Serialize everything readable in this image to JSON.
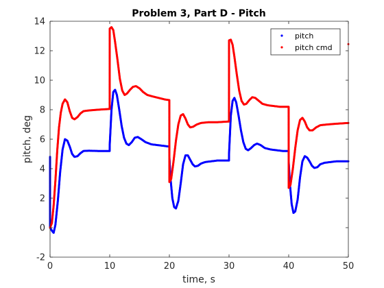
{
  "chart_data": {
    "type": "scatter",
    "title": "Problem 3, Part D - Pitch",
    "xlabel": "time, s",
    "ylabel": "pitch, deg",
    "xlim": [
      0,
      50
    ],
    "ylim": [
      -2,
      14
    ],
    "xticks": [
      "0",
      "10",
      "20",
      "30",
      "40",
      "50"
    ],
    "yticks": [
      "-2",
      "0",
      "2",
      "4",
      "6",
      "8",
      "10",
      "12",
      "14"
    ],
    "grid": false,
    "legend_position": "top-right",
    "series": [
      {
        "name": "pitch",
        "color": "#0000ff",
        "points": [
          [
            0.0,
            4.8
          ],
          [
            0.0,
            0.0
          ],
          [
            0.3,
            -0.2
          ],
          [
            0.6,
            -0.35
          ],
          [
            0.9,
            0.2
          ],
          [
            1.3,
            1.8
          ],
          [
            1.7,
            3.8
          ],
          [
            2.1,
            5.3
          ],
          [
            2.5,
            6.0
          ],
          [
            2.9,
            5.9
          ],
          [
            3.3,
            5.5
          ],
          [
            3.7,
            5.0
          ],
          [
            4.1,
            4.8
          ],
          [
            4.6,
            4.85
          ],
          [
            5.1,
            5.05
          ],
          [
            5.6,
            5.2
          ],
          [
            6.5,
            5.22
          ],
          [
            8,
            5.2
          ],
          [
            9.99,
            5.2
          ],
          [
            10.0,
            5.6
          ],
          [
            10.3,
            8.0
          ],
          [
            10.6,
            9.2
          ],
          [
            10.9,
            9.35
          ],
          [
            11.2,
            9.0
          ],
          [
            11.6,
            8.0
          ],
          [
            12.0,
            6.9
          ],
          [
            12.4,
            6.1
          ],
          [
            12.8,
            5.7
          ],
          [
            13.2,
            5.6
          ],
          [
            13.7,
            5.8
          ],
          [
            14.2,
            6.1
          ],
          [
            14.7,
            6.15
          ],
          [
            15.3,
            6.0
          ],
          [
            16,
            5.8
          ],
          [
            17,
            5.65
          ],
          [
            18,
            5.6
          ],
          [
            19.0,
            5.55
          ],
          [
            19.99,
            5.5
          ],
          [
            20.0,
            4.8
          ],
          [
            20.2,
            3.3
          ],
          [
            20.5,
            2.0
          ],
          [
            20.8,
            1.4
          ],
          [
            21.1,
            1.3
          ],
          [
            21.5,
            1.8
          ],
          [
            21.9,
            3.0
          ],
          [
            22.3,
            4.3
          ],
          [
            22.7,
            4.9
          ],
          [
            23.1,
            4.9
          ],
          [
            23.5,
            4.6
          ],
          [
            23.9,
            4.3
          ],
          [
            24.3,
            4.15
          ],
          [
            24.8,
            4.2
          ],
          [
            25.3,
            4.35
          ],
          [
            26,
            4.45
          ],
          [
            27,
            4.5
          ],
          [
            28,
            4.55
          ],
          [
            29,
            4.55
          ],
          [
            29.99,
            4.55
          ],
          [
            30.0,
            5.0
          ],
          [
            30.3,
            7.6
          ],
          [
            30.6,
            8.6
          ],
          [
            30.9,
            8.8
          ],
          [
            31.2,
            8.5
          ],
          [
            31.6,
            7.6
          ],
          [
            32.0,
            6.6
          ],
          [
            32.4,
            5.8
          ],
          [
            32.8,
            5.35
          ],
          [
            33.2,
            5.25
          ],
          [
            33.7,
            5.4
          ],
          [
            34.2,
            5.6
          ],
          [
            34.7,
            5.7
          ],
          [
            35.3,
            5.6
          ],
          [
            36,
            5.4
          ],
          [
            37,
            5.3
          ],
          [
            38,
            5.25
          ],
          [
            39.0,
            5.2
          ],
          [
            39.99,
            5.2
          ],
          [
            40.0,
            4.5
          ],
          [
            40.2,
            3.0
          ],
          [
            40.5,
            1.6
          ],
          [
            40.8,
            1.0
          ],
          [
            41.1,
            1.1
          ],
          [
            41.5,
            1.9
          ],
          [
            41.9,
            3.4
          ],
          [
            42.3,
            4.5
          ],
          [
            42.7,
            4.85
          ],
          [
            43.1,
            4.75
          ],
          [
            43.5,
            4.5
          ],
          [
            43.9,
            4.2
          ],
          [
            44.3,
            4.05
          ],
          [
            44.8,
            4.1
          ],
          [
            45.3,
            4.3
          ],
          [
            46,
            4.4
          ],
          [
            47,
            4.45
          ],
          [
            48,
            4.5
          ],
          [
            49,
            4.5
          ],
          [
            50,
            4.5
          ]
        ]
      },
      {
        "name": "pitch cmd",
        "color": "#ff0000",
        "points": [
          [
            0.0,
            0.0
          ],
          [
            0.3,
            0.3
          ],
          [
            0.6,
            1.5
          ],
          [
            0.9,
            3.2
          ],
          [
            1.2,
            5.2
          ],
          [
            1.5,
            6.8
          ],
          [
            1.8,
            7.8
          ],
          [
            2.1,
            8.4
          ],
          [
            2.5,
            8.7
          ],
          [
            2.9,
            8.5
          ],
          [
            3.3,
            7.9
          ],
          [
            3.7,
            7.45
          ],
          [
            4.1,
            7.35
          ],
          [
            4.6,
            7.5
          ],
          [
            5.1,
            7.75
          ],
          [
            5.6,
            7.9
          ],
          [
            6.5,
            7.95
          ],
          [
            8,
            8.0
          ],
          [
            9.99,
            8.05
          ],
          [
            10.0,
            13.5
          ],
          [
            10.3,
            13.6
          ],
          [
            10.6,
            13.4
          ],
          [
            10.9,
            12.6
          ],
          [
            11.3,
            11.4
          ],
          [
            11.7,
            10.1
          ],
          [
            12.1,
            9.3
          ],
          [
            12.5,
            9.0
          ],
          [
            12.9,
            9.1
          ],
          [
            13.4,
            9.35
          ],
          [
            13.9,
            9.55
          ],
          [
            14.4,
            9.6
          ],
          [
            15,
            9.45
          ],
          [
            15.6,
            9.2
          ],
          [
            16.3,
            9.0
          ],
          [
            17.2,
            8.9
          ],
          [
            18.2,
            8.8
          ],
          [
            19.2,
            8.7
          ],
          [
            19.99,
            8.65
          ],
          [
            20.0,
            3.1
          ],
          [
            20.3,
            3.3
          ],
          [
            20.7,
            4.5
          ],
          [
            21.1,
            5.9
          ],
          [
            21.5,
            7.0
          ],
          [
            21.9,
            7.6
          ],
          [
            22.3,
            7.7
          ],
          [
            22.7,
            7.4
          ],
          [
            23.1,
            7.0
          ],
          [
            23.5,
            6.8
          ],
          [
            24,
            6.85
          ],
          [
            24.6,
            7.0
          ],
          [
            25.3,
            7.1
          ],
          [
            26.5,
            7.15
          ],
          [
            28,
            7.15
          ],
          [
            29.99,
            7.2
          ],
          [
            30.0,
            12.7
          ],
          [
            30.3,
            12.75
          ],
          [
            30.6,
            12.4
          ],
          [
            30.9,
            11.6
          ],
          [
            31.3,
            10.4
          ],
          [
            31.7,
            9.3
          ],
          [
            32.1,
            8.6
          ],
          [
            32.5,
            8.35
          ],
          [
            32.9,
            8.4
          ],
          [
            33.4,
            8.65
          ],
          [
            33.9,
            8.85
          ],
          [
            34.4,
            8.8
          ],
          [
            35,
            8.6
          ],
          [
            35.6,
            8.4
          ],
          [
            36.5,
            8.3
          ],
          [
            37.5,
            8.25
          ],
          [
            38.5,
            8.2
          ],
          [
            39.99,
            8.2
          ],
          [
            40.0,
            2.7
          ],
          [
            40.3,
            2.9
          ],
          [
            40.7,
            4.0
          ],
          [
            41.1,
            5.4
          ],
          [
            41.5,
            6.6
          ],
          [
            41.9,
            7.3
          ],
          [
            42.3,
            7.45
          ],
          [
            42.7,
            7.2
          ],
          [
            43.1,
            6.8
          ],
          [
            43.5,
            6.6
          ],
          [
            44,
            6.6
          ],
          [
            44.6,
            6.8
          ],
          [
            45.3,
            6.95
          ],
          [
            46.5,
            7.0
          ],
          [
            48,
            7.05
          ],
          [
            50,
            7.1
          ]
        ]
      }
    ],
    "extra_points": [
      {
        "series": "pitch cmd",
        "x": 50,
        "y": 12.45
      }
    ]
  }
}
